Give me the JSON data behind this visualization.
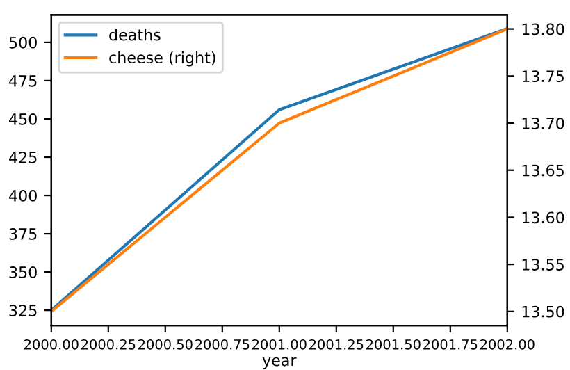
{
  "chart_data": {
    "type": "line",
    "xlabel": "year",
    "x": [
      2000,
      2001,
      2002
    ],
    "series": [
      {
        "name": "deaths",
        "color": "#1f77b4",
        "values": [
          325,
          456,
          509
        ]
      },
      {
        "name": "cheese (right)",
        "color": "#ff7f0e",
        "values": [
          13.5,
          13.7,
          13.8
        ],
        "axis": "y2"
      }
    ],
    "xlim": [
      2000,
      2002
    ],
    "xticks": [
      {
        "value": 2000,
        "label": "2000.00"
      },
      {
        "value": 2000.25,
        "label": "2000.25"
      },
      {
        "value": 2000.5,
        "label": "2000.50"
      },
      {
        "value": 2000.75,
        "label": "2000.75"
      },
      {
        "value": 2001,
        "label": "2001.00"
      },
      {
        "value": 2001.25,
        "label": "2001.25"
      },
      {
        "value": 2001.5,
        "label": "2001.50"
      },
      {
        "value": 2001.75,
        "label": "2001.75"
      },
      {
        "value": 2002,
        "label": "2002.00"
      }
    ],
    "ylim": [
      315,
      518
    ],
    "yticks": [
      325,
      350,
      375,
      400,
      425,
      450,
      475,
      500
    ],
    "y2lim": [
      13.485,
      13.815
    ],
    "y2ticks": [
      {
        "value": 13.5,
        "label": "13.50"
      },
      {
        "value": 13.55,
        "label": "13.55"
      },
      {
        "value": 13.6,
        "label": "13.60"
      },
      {
        "value": 13.65,
        "label": "13.65"
      },
      {
        "value": 13.7,
        "label": "13.70"
      },
      {
        "value": 13.75,
        "label": "13.75"
      },
      {
        "value": 13.8,
        "label": "13.80"
      }
    ],
    "legend": "top left",
    "grid": false,
    "marker": "none",
    "line_style": "solid"
  }
}
